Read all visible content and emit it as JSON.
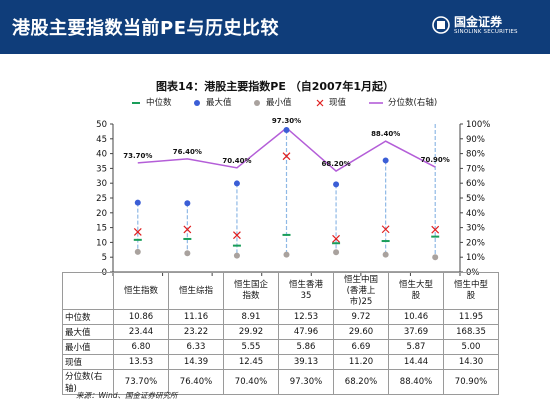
{
  "page": {
    "title": "港股主要指数当前PE与历史比较",
    "logo_name": "国金证券",
    "logo_en": "SINOLINK SECURITIES",
    "source": "来源：Wind、国金证券研究所"
  },
  "colors": {
    "header_bg": "#0f3d7a",
    "median": "#1a9e5a",
    "max": "#3b5ed6",
    "min": "#a9a29e",
    "current": "#e02020",
    "percentile": "#b45ed8",
    "range_line": "#8fb9e6"
  },
  "chart_data": {
    "type": "line",
    "title": "图表14：港股主要指数PE （自2007年1月起）",
    "categories": [
      "恒生指数",
      "恒生综指",
      "恒生国企指数",
      "恒生香港35",
      "恒生中国(香港上市)25",
      "恒生大型股",
      "恒生中型股"
    ],
    "category_lines": [
      [
        "恒生指数"
      ],
      [
        "恒生综指"
      ],
      [
        "恒生国企",
        "指数"
      ],
      [
        "恒生香港",
        "35"
      ],
      [
        "恒生中国",
        "(香港上",
        "市)25"
      ],
      [
        "恒生大型",
        "股"
      ],
      [
        "恒生中型",
        "股"
      ]
    ],
    "legend": [
      "中位数",
      "最大值",
      "最小值",
      "现值",
      "分位数(右轴)"
    ],
    "series": [
      {
        "name": "中位数",
        "values": [
          10.86,
          11.16,
          8.91,
          12.53,
          9.72,
          10.46,
          11.95
        ]
      },
      {
        "name": "最大值",
        "values": [
          23.44,
          23.22,
          29.92,
          47.96,
          29.6,
          37.69,
          168.35
        ]
      },
      {
        "name": "最小值",
        "values": [
          6.8,
          6.33,
          5.55,
          5.86,
          6.69,
          5.87,
          5.0
        ]
      },
      {
        "name": "现值",
        "values": [
          13.53,
          14.39,
          12.45,
          39.13,
          11.2,
          14.44,
          14.3
        ]
      },
      {
        "name": "分位数(右轴)",
        "values": [
          73.7,
          76.4,
          70.4,
          97.3,
          68.2,
          88.4,
          70.9
        ],
        "axis": "right"
      }
    ],
    "table": {
      "row_labels": [
        "中位数",
        "最大值",
        "最小值",
        "现值",
        "分位数(右轴)"
      ],
      "rows": [
        [
          "10.86",
          "11.16",
          "8.91",
          "12.53",
          "9.72",
          "10.46",
          "11.95"
        ],
        [
          "23.44",
          "23.22",
          "29.92",
          "47.96",
          "29.60",
          "37.69",
          "168.35"
        ],
        [
          "6.80",
          "6.33",
          "5.55",
          "5.86",
          "6.69",
          "5.87",
          "5.00"
        ],
        [
          "13.53",
          "14.39",
          "12.45",
          "39.13",
          "11.20",
          "14.44",
          "14.30"
        ],
        [
          "73.70%",
          "76.40%",
          "70.40%",
          "97.30%",
          "68.20%",
          "88.40%",
          "70.90%"
        ]
      ]
    },
    "percentile_labels": [
      "73.70%",
      "76.40%",
      "70.40%",
      "97.30%",
      "68.20%",
      "88.40%",
      "70.90%"
    ],
    "ylim": [
      0,
      50
    ],
    "yticks": [
      0,
      5,
      10,
      15,
      20,
      25,
      30,
      35,
      40,
      45,
      50
    ],
    "y2lim": [
      0,
      100
    ],
    "y2ticks": [
      "0%",
      "10%",
      "20%",
      "30%",
      "40%",
      "50%",
      "60%",
      "70%",
      "80%",
      "90%",
      "100%"
    ],
    "legend_position": "top"
  }
}
